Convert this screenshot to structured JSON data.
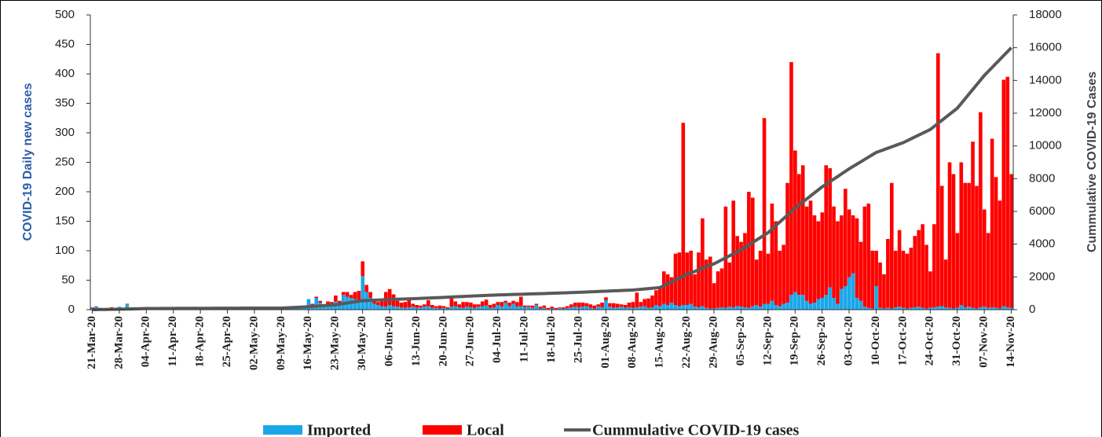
{
  "chart_data": {
    "type": "bar",
    "y_label": "COVID-19 Daily new cases",
    "y2_label": "Cummulative COVID-19 Cases",
    "ylim": [
      0,
      500
    ],
    "yticks": [
      0,
      50,
      100,
      150,
      200,
      250,
      300,
      350,
      400,
      450,
      500
    ],
    "y2lim": [
      0,
      18000
    ],
    "y2ticks": [
      0,
      2000,
      4000,
      6000,
      8000,
      10000,
      12000,
      14000,
      16000,
      18000
    ],
    "stacked": true,
    "categories": [
      "21-Mar-20",
      null,
      null,
      null,
      null,
      null,
      null,
      "28-Mar-20",
      null,
      null,
      null,
      null,
      null,
      null,
      "04-Apr-20",
      null,
      null,
      null,
      null,
      null,
      null,
      "11-Apr-20",
      null,
      null,
      null,
      null,
      null,
      null,
      "18-Apr-20",
      null,
      null,
      null,
      null,
      null,
      null,
      "25-Apr-20",
      null,
      null,
      null,
      null,
      null,
      null,
      "02-May-20",
      null,
      null,
      null,
      null,
      null,
      null,
      "09-May-20",
      null,
      null,
      null,
      null,
      null,
      null,
      "16-May-20",
      null,
      null,
      null,
      null,
      null,
      null,
      "23-May-20",
      null,
      null,
      null,
      null,
      null,
      null,
      "30-May-20",
      null,
      null,
      null,
      null,
      null,
      null,
      "06-Jun-20",
      null,
      null,
      null,
      null,
      null,
      null,
      "13-Jun-20",
      null,
      null,
      null,
      null,
      null,
      null,
      "20-Jun-20",
      null,
      null,
      null,
      null,
      null,
      null,
      "27-Jun-20",
      null,
      null,
      null,
      null,
      null,
      null,
      "04-Jul-20",
      null,
      null,
      null,
      null,
      null,
      null,
      "11-Jul-20",
      null,
      null,
      null,
      null,
      null,
      null,
      "18-Jul-20",
      null,
      null,
      null,
      null,
      null,
      null,
      "25-Jul-20",
      null,
      null,
      null,
      null,
      null,
      null,
      "01-Aug-20",
      null,
      null,
      null,
      null,
      null,
      null,
      "08-Aug-20",
      null,
      null,
      null,
      null,
      null,
      null,
      "15-Aug-20",
      null,
      null,
      null,
      null,
      null,
      null,
      "22-Aug-20",
      null,
      null,
      null,
      null,
      null,
      null,
      "29-Aug-20",
      null,
      null,
      null,
      null,
      null,
      null,
      "05-Sep-20",
      null,
      null,
      null,
      null,
      null,
      null,
      "12-Sep-20",
      null,
      null,
      null,
      null,
      null,
      null,
      "19-Sep-20",
      null,
      null,
      null,
      null,
      null,
      null,
      "26-Sep-20",
      null,
      null,
      null,
      null,
      null,
      null,
      "03-Oct-20",
      null,
      null,
      null,
      null,
      null,
      null,
      "10-Oct-20",
      null,
      null,
      null,
      null,
      null,
      null,
      "17-Oct-20",
      null,
      null,
      null,
      null,
      null,
      null,
      "24-Oct-20",
      null,
      null,
      null,
      null,
      null,
      null,
      "31-Oct-20",
      null,
      null,
      null,
      null,
      null,
      null,
      "07-Nov-20",
      null,
      null,
      null,
      null,
      null,
      null,
      "14-Nov-20"
    ],
    "series": [
      {
        "name": "Imported",
        "color": "#1aa7e8",
        "type": "bar",
        "values": [
          3,
          6,
          2,
          1,
          2,
          3,
          1,
          5,
          2,
          9,
          3,
          1,
          1,
          0,
          1,
          0,
          1,
          0,
          0,
          1,
          0,
          0,
          0,
          1,
          0,
          0,
          0,
          0,
          0,
          0,
          0,
          0,
          0,
          0,
          0,
          0,
          0,
          0,
          0,
          0,
          1,
          0,
          0,
          1,
          0,
          0,
          0,
          0,
          1,
          1,
          2,
          1,
          3,
          4,
          5,
          6,
          18,
          8,
          20,
          12,
          6,
          10,
          8,
          14,
          10,
          25,
          22,
          20,
          18,
          12,
          57,
          30,
          20,
          10,
          8,
          6,
          5,
          8,
          6,
          5,
          4,
          3,
          4,
          5,
          3,
          4,
          5,
          6,
          3,
          3,
          2,
          3,
          2,
          5,
          6,
          4,
          3,
          5,
          4,
          3,
          5,
          6,
          7,
          3,
          4,
          8,
          5,
          12,
          6,
          10,
          5,
          6,
          4,
          5,
          3,
          8,
          2,
          3,
          1,
          2,
          1,
          3,
          2,
          3,
          4,
          5,
          4,
          5,
          6,
          3,
          2,
          5,
          4,
          16,
          5,
          3,
          4,
          5,
          3,
          4,
          3,
          4,
          5,
          6,
          3,
          4,
          8,
          6,
          10,
          8,
          12,
          8,
          6,
          8,
          8,
          10,
          5,
          4,
          6,
          3,
          2,
          2,
          3,
          4,
          3,
          5,
          4,
          6,
          5,
          4,
          3,
          6,
          8,
          5,
          10,
          10,
          15,
          8,
          6,
          10,
          12,
          25,
          30,
          25,
          25,
          15,
          10,
          12,
          18,
          20,
          25,
          38,
          20,
          10,
          35,
          40,
          55,
          62,
          20,
          15,
          5,
          3,
          2,
          40,
          3,
          2,
          3,
          2,
          4,
          5,
          3,
          2,
          3,
          4,
          5,
          3,
          2,
          3,
          4,
          5,
          6,
          4,
          3,
          2,
          3,
          8,
          4,
          5,
          3,
          2,
          4,
          5,
          3,
          4,
          3,
          2,
          6,
          4,
          3
        ]
      },
      {
        "name": "Local",
        "color": "#ff0000",
        "type": "bar",
        "values": [
          1,
          0,
          1,
          0,
          0,
          1,
          0,
          0,
          1,
          1,
          0,
          0,
          0,
          0,
          0,
          1,
          0,
          0,
          1,
          0,
          0,
          0,
          1,
          0,
          1,
          0,
          0,
          1,
          1,
          0,
          0,
          1,
          0,
          0,
          1,
          0,
          1,
          0,
          0,
          1,
          0,
          0,
          1,
          0,
          1,
          0,
          0,
          1,
          0,
          0,
          0,
          0,
          1,
          1,
          1,
          1,
          0,
          2,
          2,
          3,
          2,
          4,
          5,
          10,
          5,
          5,
          8,
          5,
          12,
          20,
          25,
          12,
          10,
          8,
          5,
          8,
          25,
          27,
          20,
          10,
          8,
          10,
          12,
          5,
          5,
          3,
          4,
          10,
          5,
          3,
          5,
          3,
          2,
          15,
          8,
          5,
          10,
          8,
          8,
          6,
          4,
          8,
          10,
          5,
          6,
          5,
          8,
          3,
          6,
          5,
          8,
          16,
          3,
          2,
          4,
          2,
          3,
          4,
          2,
          3,
          2,
          1,
          2,
          3,
          5,
          7,
          8,
          7,
          5,
          6,
          5,
          4,
          8,
          5,
          6,
          8,
          6,
          4,
          5,
          8,
          10,
          25,
          8,
          12,
          16,
          20,
          25,
          34,
          55,
          52,
          43,
          87,
          91,
          309,
          89,
          90,
          55,
          93,
          149,
          82,
          88,
          43,
          62,
          66,
          172,
          75,
          181,
          119,
          110,
          126,
          197,
          184,
          77,
          95,
          315,
          85,
          165,
          142,
          94,
          100,
          203,
          395,
          240,
          205,
          220,
          160,
          175,
          148,
          132,
          145,
          220,
          202,
          155,
          140,
          125,
          165,
          115,
          98,
          135,
          100,
          170,
          177,
          98,
          60,
          77,
          58,
          117,
          213,
          96,
          130,
          97,
          93,
          102,
          121,
          130,
          142,
          108,
          62,
          141,
          430,
          204,
          81,
          247,
          228,
          127,
          242,
          211,
          210,
          282,
          208,
          331,
          165,
          127,
          286,
          222,
          183,
          384,
          391,
          227
        ]
      },
      {
        "name": "Cummulative COVID-19 cases",
        "color": "#595959",
        "type": "line",
        "axis": "y2",
        "values": [
          2,
          6,
          10,
          14,
          18,
          22,
          26,
          30,
          36,
          41,
          47,
          53,
          59,
          64,
          70,
          71,
          73,
          74,
          76,
          77,
          79,
          80,
          81,
          81,
          82,
          83,
          84,
          84,
          85,
          86,
          86,
          87,
          88,
          89,
          89,
          90,
          91,
          91,
          92,
          93,
          94,
          94,
          95,
          96,
          96,
          97,
          98,
          99,
          99,
          100,
          111,
          123,
          134,
          146,
          157,
          169,
          180,
          197,
          214,
          231,
          249,
          266,
          283,
          300,
          336,
          371,
          407,
          443,
          479,
          514,
          550,
          560,
          570,
          580,
          590,
          600,
          610,
          620,
          629,
          637,
          646,
          654,
          663,
          671,
          680,
          690,
          700,
          710,
          720,
          730,
          740,
          750,
          761,
          773,
          784,
          796,
          807,
          819,
          830,
          840,
          850,
          860,
          870,
          880,
          890,
          900,
          907,
          914,
          921,
          929,
          936,
          943,
          950,
          957,
          964,
          971,
          979,
          986,
          993,
          1000,
          1009,
          1017,
          1026,
          1034,
          1043,
          1051,
          1060,
          1070,
          1080,
          1090,
          1100,
          1110,
          1120,
          1130,
          1140,
          1150,
          1160,
          1170,
          1180,
          1190,
          1200,
          1221,
          1243,
          1264,
          1286,
          1307,
          1329,
          1350,
          1464,
          1579,
          1693,
          1807,
          1921,
          2036,
          2150,
          2243,
          2336,
          2429,
          2521,
          2614,
          2707,
          2800,
          2921,
          3043,
          3164,
          3286,
          3407,
          3529,
          3650,
          3800,
          3950,
          4100,
          4250,
          4400,
          4550,
          4700,
          4914,
          5129,
          5343,
          5557,
          5771,
          5986,
          6200,
          6386,
          6571,
          6757,
          6943,
          7129,
          7314,
          7500,
          7657,
          7814,
          7971,
          8129,
          8286,
          8443,
          8600,
          8743,
          8886,
          9029,
          9171,
          9314,
          9457,
          9600,
          9686,
          9771,
          9857,
          9943,
          10029,
          10114,
          10200,
          10314,
          10429,
          10543,
          10657,
          10771,
          10886,
          11000,
          11186,
          11371,
          11557,
          11743,
          11929,
          12114,
          12300,
          12586,
          12871,
          13157,
          13443,
          13729,
          14014,
          14300,
          14543,
          14786,
          15029,
          15271,
          15514,
          15757,
          16000
        ]
      }
    ]
  }
}
